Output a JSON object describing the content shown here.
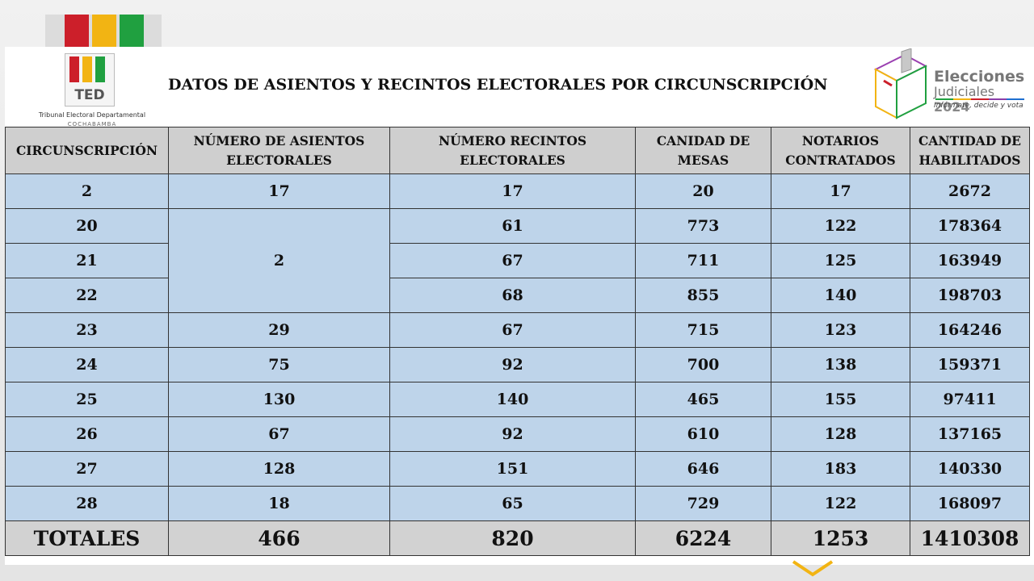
{
  "header": {
    "title": "DATOS DE ASIENTOS Y RECINTOS ELECTORALES POR CIRCUNSCRIPCIÓN",
    "ted_logo": {
      "acronym": "TED",
      "name": "Tribunal Electoral Departamental",
      "city": "COCHABAMBA"
    },
    "elecciones_logo": {
      "word1": "Elecciones",
      "word2": "Judiciales",
      "year": "2024",
      "slogan": "Infórmate, decide y vota"
    }
  },
  "table": {
    "headers": [
      "CIRCUNSCRIPCIÓN",
      "NÚMERO DE ASIENTOS ELECTORALES",
      "NÚMERO RECINTOS ELECTORALES",
      "CANIDAD DE MESAS",
      "NOTARIOS CONTRATADOS",
      "CANTIDAD DE HABILITADOS"
    ],
    "rows": [
      {
        "c": "2",
        "asientos": "17",
        "recintos": "17",
        "mesas": "20",
        "notarios": "17",
        "habilitados": "2672"
      },
      {
        "c": "20",
        "asientos": "2",
        "recintos": "61",
        "mesas": "773",
        "notarios": "122",
        "habilitados": "178364"
      },
      {
        "c": "21",
        "recintos": "67",
        "mesas": "711",
        "notarios": "125",
        "habilitados": "163949"
      },
      {
        "c": "22",
        "recintos": "68",
        "mesas": "855",
        "notarios": "140",
        "habilitados": "198703"
      },
      {
        "c": "23",
        "asientos": "29",
        "recintos": "67",
        "mesas": "715",
        "notarios": "123",
        "habilitados": "164246"
      },
      {
        "c": "24",
        "asientos": "75",
        "recintos": "92",
        "mesas": "700",
        "notarios": "138",
        "habilitados": "159371"
      },
      {
        "c": "25",
        "asientos": "130",
        "recintos": "140",
        "mesas": "465",
        "notarios": "155",
        "habilitados": "97411"
      },
      {
        "c": "26",
        "asientos": "67",
        "recintos": "92",
        "mesas": "610",
        "notarios": "128",
        "habilitados": "137165"
      },
      {
        "c": "27",
        "asientos": "128",
        "recintos": "151",
        "mesas": "646",
        "notarios": "183",
        "habilitados": "140330"
      },
      {
        "c": "28",
        "asientos": "18",
        "recintos": "65",
        "mesas": "729",
        "notarios": "122",
        "habilitados": "168097"
      }
    ],
    "totals": {
      "label": "TOTALES",
      "asientos": "466",
      "recintos": "820",
      "mesas": "6224",
      "notarios": "1253",
      "habilitados": "1410308"
    }
  },
  "colors": {
    "header_row": "#cfcfcf",
    "body_row": "#bed4ea",
    "totals_row": "#d2d2d2",
    "flag_red": "#cc1f2a",
    "flag_yellow": "#f2b413",
    "flag_green": "#20a040"
  }
}
